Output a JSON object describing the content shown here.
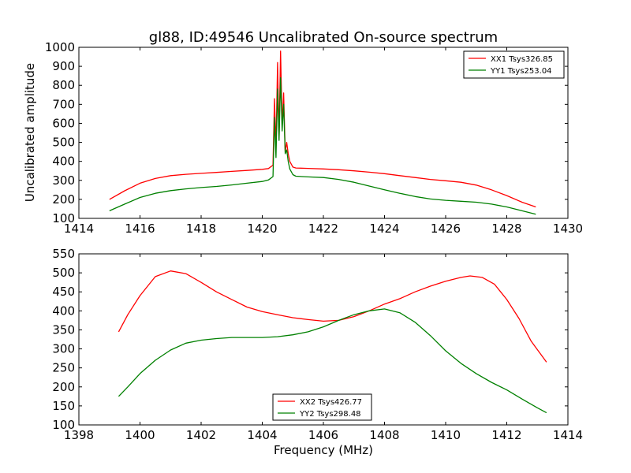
{
  "chart_data": [
    {
      "type": "line",
      "title": "gl88, ID:49546 Uncalibrated On-source spectrum",
      "xlabel": "",
      "ylabel": "Uncalibrated amplitude",
      "xlim": [
        1414,
        1430
      ],
      "ylim": [
        100,
        1000
      ],
      "xticks": [
        "1414",
        "1416",
        "1418",
        "1420",
        "1422",
        "1424",
        "1426",
        "1428",
        "1430"
      ],
      "yticks": [
        "100",
        "200",
        "300",
        "400",
        "500",
        "600",
        "700",
        "800",
        "900",
        "1000"
      ],
      "grid": false,
      "legend_position": "top-right",
      "series": [
        {
          "name": "XX1 Tsys326.85",
          "color": "#ff0000",
          "x": [
            1415.0,
            1415.5,
            1416.0,
            1416.5,
            1417.0,
            1417.5,
            1418.0,
            1418.5,
            1419.0,
            1419.5,
            1420.0,
            1420.2,
            1420.35,
            1420.4,
            1420.45,
            1420.5,
            1420.55,
            1420.6,
            1420.65,
            1420.7,
            1420.75,
            1420.8,
            1420.85,
            1420.9,
            1421.0,
            1421.1,
            1421.5,
            1422.0,
            1422.5,
            1423.0,
            1423.5,
            1424.0,
            1424.5,
            1425.0,
            1425.5,
            1426.0,
            1426.5,
            1427.0,
            1427.5,
            1428.0,
            1428.5,
            1428.95
          ],
          "y": [
            200,
            245,
            285,
            310,
            325,
            332,
            337,
            342,
            347,
            352,
            358,
            362,
            380,
            730,
            470,
            920,
            520,
            980,
            590,
            760,
            450,
            500,
            440,
            400,
            370,
            365,
            363,
            360,
            356,
            350,
            343,
            335,
            325,
            315,
            305,
            298,
            290,
            275,
            250,
            220,
            185,
            160
          ]
        },
        {
          "name": "YY1 Tsys253.04",
          "color": "#008000",
          "x": [
            1415.0,
            1415.5,
            1416.0,
            1416.5,
            1417.0,
            1417.5,
            1418.0,
            1418.5,
            1419.0,
            1419.5,
            1420.0,
            1420.2,
            1420.35,
            1420.4,
            1420.45,
            1420.5,
            1420.55,
            1420.6,
            1420.65,
            1420.7,
            1420.75,
            1420.8,
            1420.85,
            1420.9,
            1421.0,
            1421.1,
            1421.5,
            1422.0,
            1422.5,
            1423.0,
            1423.5,
            1424.0,
            1424.5,
            1425.0,
            1425.5,
            1426.0,
            1426.5,
            1427.0,
            1427.5,
            1428.0,
            1428.5,
            1428.95
          ],
          "y": [
            140,
            175,
            210,
            232,
            246,
            255,
            262,
            268,
            276,
            285,
            294,
            302,
            320,
            630,
            420,
            780,
            510,
            840,
            560,
            700,
            440,
            460,
            400,
            360,
            330,
            322,
            318,
            315,
            305,
            290,
            270,
            250,
            232,
            215,
            202,
            195,
            190,
            185,
            175,
            160,
            140,
            122
          ]
        }
      ]
    },
    {
      "type": "line",
      "title": "",
      "xlabel": "Frequency (MHz)",
      "ylabel": "",
      "xlim": [
        1398,
        1414
      ],
      "ylim": [
        100,
        550
      ],
      "xticks": [
        "1398",
        "1400",
        "1402",
        "1404",
        "1406",
        "1408",
        "1410",
        "1412",
        "1414"
      ],
      "yticks": [
        "100",
        "150",
        "200",
        "250",
        "300",
        "350",
        "400",
        "450",
        "500",
        "550"
      ],
      "grid": false,
      "legend_position": "bottom-center",
      "series": [
        {
          "name": "XX2 Tsys426.77",
          "color": "#ff0000",
          "x": [
            1399.3,
            1399.6,
            1400.0,
            1400.5,
            1401.0,
            1401.5,
            1402.0,
            1402.5,
            1403.0,
            1403.5,
            1404.0,
            1404.5,
            1405.0,
            1405.5,
            1406.0,
            1406.5,
            1407.0,
            1407.5,
            1408.0,
            1408.5,
            1409.0,
            1409.5,
            1410.0,
            1410.5,
            1410.8,
            1411.2,
            1411.6,
            1412.0,
            1412.4,
            1412.8,
            1413.3
          ],
          "y": [
            345,
            390,
            440,
            490,
            505,
            498,
            475,
            450,
            430,
            410,
            398,
            390,
            382,
            377,
            373,
            375,
            385,
            400,
            418,
            432,
            450,
            465,
            478,
            488,
            492,
            488,
            470,
            430,
            380,
            320,
            265
          ]
        },
        {
          "name": "YY2 Tsys298.48",
          "color": "#008000",
          "x": [
            1399.3,
            1399.6,
            1400.0,
            1400.5,
            1401.0,
            1401.5,
            1402.0,
            1402.5,
            1403.0,
            1403.5,
            1404.0,
            1404.5,
            1405.0,
            1405.5,
            1406.0,
            1406.5,
            1407.0,
            1407.5,
            1408.0,
            1408.5,
            1409.0,
            1409.5,
            1410.0,
            1410.5,
            1411.0,
            1411.5,
            1412.0,
            1412.5,
            1413.0,
            1413.3
          ],
          "y": [
            175,
            200,
            235,
            270,
            297,
            315,
            323,
            327,
            330,
            330,
            330,
            332,
            337,
            345,
            358,
            375,
            390,
            400,
            405,
            395,
            370,
            335,
            295,
            262,
            235,
            212,
            192,
            168,
            145,
            132
          ]
        }
      ]
    }
  ]
}
